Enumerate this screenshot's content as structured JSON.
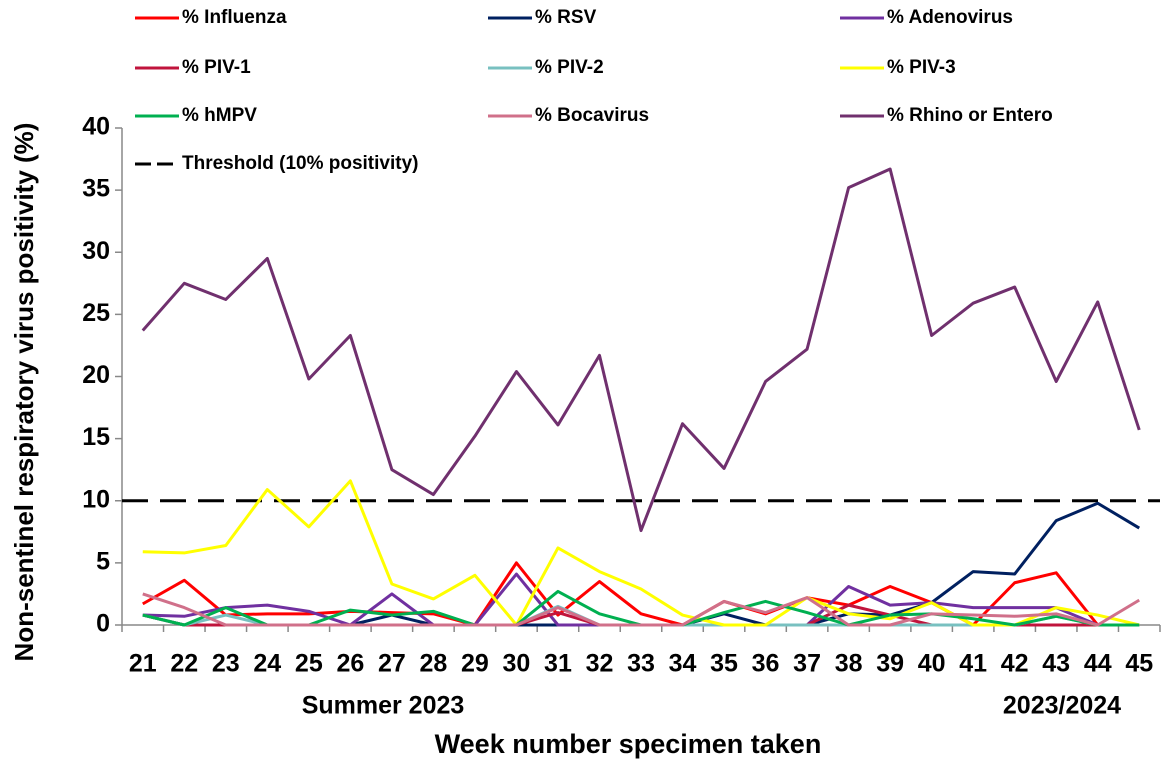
{
  "chart_data": {
    "type": "line",
    "x_label": "Week number specimen taken",
    "y_label": "Non-sentinel respiratory virus positivity (%)",
    "categories": [
      "21",
      "22",
      "23",
      "24",
      "25",
      "26",
      "27",
      "28",
      "29",
      "30",
      "31",
      "32",
      "33",
      "34",
      "35",
      "36",
      "37",
      "38",
      "39",
      "40",
      "41",
      "42",
      "43",
      "44",
      "45"
    ],
    "annotations": [
      "Summer 2023",
      "2023/2024"
    ],
    "ylim": [
      0,
      40
    ],
    "yticks": [
      0,
      5,
      10,
      15,
      20,
      25,
      30,
      35,
      40
    ],
    "threshold": {
      "name": "Threshold (10% positivity)",
      "value": 10,
      "color": "#000000"
    },
    "series": [
      {
        "name": "% Influenza",
        "color": "#ff0000",
        "values": [
          1.7,
          3.6,
          0.8,
          0.9,
          0.9,
          1.1,
          1.0,
          0.9,
          0,
          5.0,
          0.8,
          3.5,
          0.9,
          0,
          1.9,
          0.9,
          2.2,
          1.6,
          3.1,
          1.8,
          0,
          3.4,
          4.2,
          0,
          0
        ]
      },
      {
        "name": "% RSV",
        "color": "#002060",
        "values": [
          0.8,
          0,
          0,
          0,
          0,
          0,
          0.8,
          0,
          0,
          0,
          0,
          0,
          0,
          0,
          0.9,
          0,
          0,
          0.9,
          0.8,
          1.8,
          4.3,
          4.1,
          8.4,
          9.8,
          7.8
        ]
      },
      {
        "name": "% Adenovirus",
        "color": "#7030a0",
        "values": [
          0.8,
          0.7,
          1.4,
          1.6,
          1.1,
          0,
          2.5,
          0,
          0,
          4.1,
          0,
          0,
          0,
          0,
          0,
          0,
          0,
          3.1,
          1.6,
          1.8,
          1.4,
          1.4,
          1.4,
          0,
          0
        ]
      },
      {
        "name": "% PIV-1",
        "color": "#c0143c",
        "values": [
          0.8,
          0,
          0,
          0,
          0,
          0,
          0,
          0,
          0,
          0,
          1.0,
          0,
          0,
          0,
          0,
          0,
          0,
          1.6,
          0.8,
          0,
          0,
          0,
          0,
          0,
          0
        ]
      },
      {
        "name": "% PIV-2",
        "color": "#78c0c0",
        "values": [
          0.8,
          0,
          0.8,
          0,
          0,
          0,
          0,
          0,
          0,
          0,
          1.5,
          0,
          0,
          0,
          0,
          0,
          0,
          0,
          0,
          0,
          0,
          0,
          0.7,
          0,
          0
        ]
      },
      {
        "name": "% PIV-3",
        "color": "#ffff00",
        "values": [
          5.9,
          5.8,
          6.4,
          10.9,
          7.9,
          11.6,
          3.3,
          2.1,
          4.0,
          0,
          6.2,
          4.3,
          2.9,
          0.8,
          0,
          0,
          2.2,
          0.9,
          0.5,
          1.8,
          0,
          0,
          1.4,
          0.8,
          0
        ]
      },
      {
        "name": "% hMPV",
        "color": "#00b050",
        "values": [
          0.8,
          0,
          1.4,
          0,
          0,
          1.2,
          0.8,
          1.1,
          0,
          0,
          2.7,
          0.9,
          0,
          0,
          1.0,
          1.9,
          1.0,
          0,
          0.8,
          0.9,
          0.5,
          0,
          0.7,
          0,
          0
        ]
      },
      {
        "name": "% Bocavirus",
        "color": "#d0708a",
        "values": [
          2.5,
          1.4,
          0,
          0,
          0,
          0,
          0,
          0,
          0,
          0,
          1.4,
          0,
          0,
          0,
          1.9,
          1.0,
          2.2,
          0,
          0,
          0.9,
          0.8,
          0.7,
          0.9,
          0,
          2.0
        ]
      },
      {
        "name": "% Rhino or Entero",
        "color": "#70306e",
        "values": [
          23.7,
          27.5,
          26.2,
          29.5,
          19.8,
          23.3,
          12.5,
          10.5,
          15.2,
          20.4,
          16.1,
          21.7,
          7.6,
          16.2,
          12.6,
          19.6,
          22.2,
          35.2,
          36.7,
          23.3,
          25.9,
          27.2,
          19.6,
          26.0,
          15.7
        ]
      }
    ]
  }
}
